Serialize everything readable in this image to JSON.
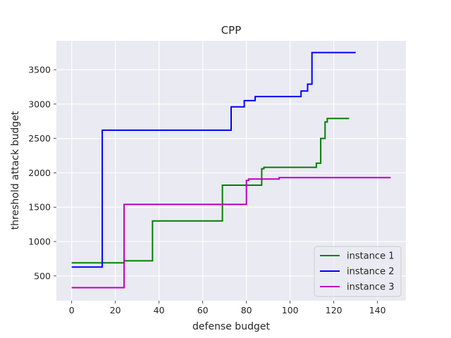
{
  "chart_data": {
    "type": "line",
    "step": true,
    "title": "CPP",
    "xlabel": "defense budget",
    "ylabel": "threshold attack budget",
    "xlim": [
      -7,
      153
    ],
    "ylim": [
      140,
      3920
    ],
    "xticks": [
      0,
      20,
      40,
      60,
      80,
      100,
      120,
      140
    ],
    "yticks": [
      500,
      1000,
      1500,
      2000,
      2500,
      3000,
      3500
    ],
    "grid": true,
    "legend_position": "lower right",
    "series": [
      {
        "name": "instance 1",
        "color": "#008000",
        "x": [
          0,
          24,
          37,
          69,
          87,
          88,
          112,
          114,
          116,
          117,
          127
        ],
        "y": [
          690,
          720,
          1300,
          1820,
          2060,
          2080,
          2140,
          2500,
          2740,
          2790,
          2790
        ]
      },
      {
        "name": "instance 2",
        "color": "#0000ff",
        "x": [
          0,
          14,
          73,
          79,
          84,
          105,
          108,
          110,
          130
        ],
        "y": [
          630,
          2620,
          2960,
          3050,
          3110,
          3190,
          3290,
          3750,
          3750
        ]
      },
      {
        "name": "instance 3",
        "color": "#bf00bf",
        "x": [
          0,
          24,
          80,
          81,
          95,
          146
        ],
        "y": [
          330,
          1540,
          1890,
          1910,
          1930,
          1930
        ]
      }
    ]
  }
}
